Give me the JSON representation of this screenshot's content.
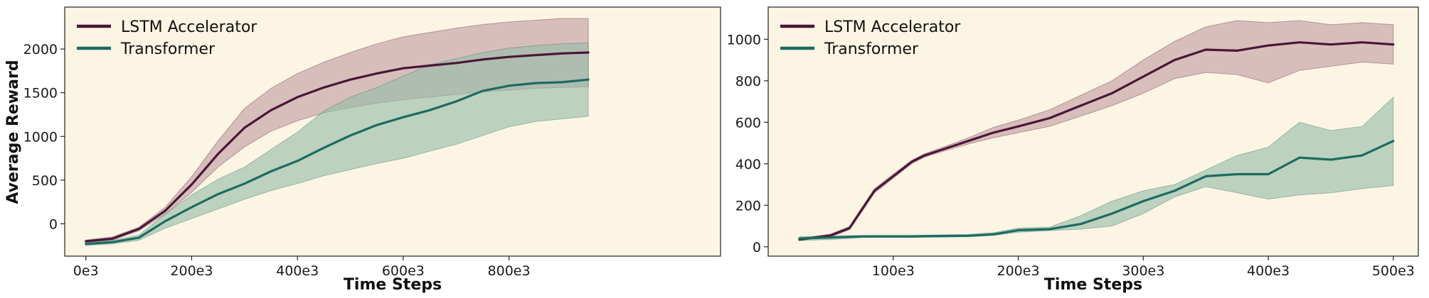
{
  "colors": {
    "background": "#fdf5e3",
    "lstm": "#4a1637",
    "lstm_band": "#b98f9a",
    "transformer": "#1c6b61",
    "transformer_band": "#95bda8"
  },
  "chart_data": [
    {
      "type": "line",
      "xlabel": "Time Steps",
      "ylabel": "Average Reward",
      "xlim": [
        -40,
        1200
      ],
      "ylim": [
        -370,
        2480
      ],
      "xticks": [
        0,
        200,
        400,
        600,
        800
      ],
      "xtick_labels": [
        "0e3",
        "200e3",
        "400e3",
        "600e3",
        "800e3"
      ],
      "yticks": [
        0,
        500,
        1000,
        1500,
        2000
      ],
      "ytick_labels": [
        "0",
        "500",
        "1000",
        "1500",
        "2000"
      ],
      "legend": {
        "location": "top-left",
        "entries": [
          "LSTM Accelerator",
          "Transformer"
        ]
      },
      "x": [
        0,
        50,
        100,
        150,
        200,
        250,
        300,
        350,
        400,
        450,
        500,
        550,
        600,
        650,
        700,
        750,
        800,
        850,
        900,
        950
      ],
      "series": [
        {
          "name": "LSTM Accelerator",
          "values": [
            -200,
            -170,
            -60,
            150,
            450,
            800,
            1100,
            1300,
            1450,
            1560,
            1650,
            1720,
            1780,
            1810,
            1840,
            1880,
            1910,
            1930,
            1950,
            1960
          ],
          "lower": [
            -215,
            -190,
            -80,
            110,
            360,
            650,
            880,
            1060,
            1180,
            1270,
            1330,
            1380,
            1420,
            1450,
            1480,
            1510,
            1530,
            1550,
            1560,
            1570
          ],
          "upper": [
            -185,
            -150,
            -40,
            190,
            540,
            950,
            1320,
            1550,
            1720,
            1850,
            1960,
            2060,
            2140,
            2190,
            2240,
            2280,
            2310,
            2330,
            2350,
            2350
          ]
        },
        {
          "name": "Transformer",
          "values": [
            -230,
            -210,
            -160,
            30,
            190,
            340,
            460,
            600,
            720,
            870,
            1010,
            1130,
            1220,
            1300,
            1400,
            1520,
            1580,
            1610,
            1620,
            1650
          ],
          "lower": [
            -250,
            -230,
            -190,
            -50,
            60,
            170,
            280,
            380,
            460,
            550,
            620,
            690,
            750,
            830,
            910,
            1010,
            1110,
            1170,
            1200,
            1230
          ],
          "upper": [
            -210,
            -190,
            -130,
            110,
            330,
            510,
            650,
            850,
            1050,
            1290,
            1450,
            1560,
            1690,
            1820,
            1890,
            1960,
            2010,
            2040,
            2060,
            2070
          ]
        }
      ]
    },
    {
      "type": "line",
      "xlabel": "Time Steps",
      "ylabel": "",
      "xlim": [
        0,
        520
      ],
      "ylim": [
        -45,
        1155
      ],
      "xticks": [
        100,
        200,
        300,
        400,
        500
      ],
      "xtick_labels": [
        "100e3",
        "200e3",
        "300e3",
        "400e3",
        "500e3"
      ],
      "yticks": [
        0,
        200,
        400,
        600,
        800,
        1000
      ],
      "ytick_labels": [
        "0",
        "200",
        "400",
        "600",
        "800",
        "1000"
      ],
      "legend": {
        "location": "top-left",
        "entries": [
          "LSTM Accelerator",
          "Transformer"
        ]
      },
      "x": [
        25,
        50,
        65,
        75,
        85,
        100,
        115,
        125,
        140,
        160,
        180,
        200,
        225,
        250,
        275,
        300,
        325,
        350,
        375,
        400,
        425,
        450,
        475,
        500
      ],
      "series": [
        {
          "name": "LSTM Accelerator",
          "values": [
            35,
            55,
            90,
            180,
            270,
            340,
            410,
            440,
            470,
            510,
            550,
            580,
            620,
            680,
            740,
            820,
            900,
            950,
            945,
            970,
            985,
            975,
            985,
            975
          ],
          "lower": [
            30,
            48,
            82,
            170,
            260,
            330,
            402,
            432,
            460,
            495,
            525,
            550,
            580,
            630,
            680,
            740,
            810,
            840,
            830,
            790,
            850,
            870,
            890,
            880
          ],
          "upper": [
            40,
            62,
            98,
            190,
            280,
            350,
            418,
            448,
            480,
            525,
            575,
            610,
            660,
            730,
            800,
            900,
            990,
            1060,
            1090,
            1080,
            1090,
            1070,
            1080,
            1070
          ]
        },
        {
          "name": "Transformer",
          "values": [
            40,
            45,
            48,
            50,
            50,
            50,
            50,
            51,
            52,
            53,
            60,
            80,
            85,
            110,
            160,
            220,
            270,
            340,
            350,
            350,
            430,
            420,
            440,
            510
          ],
          "lower": [
            30,
            35,
            40,
            44,
            45,
            45,
            45,
            46,
            47,
            48,
            55,
            70,
            78,
            85,
            100,
            160,
            240,
            290,
            260,
            230,
            250,
            260,
            280,
            295
          ],
          "upper": [
            48,
            52,
            54,
            55,
            55,
            55,
            55,
            56,
            58,
            60,
            68,
            90,
            95,
            150,
            220,
            270,
            300,
            370,
            440,
            480,
            600,
            560,
            580,
            720
          ]
        }
      ]
    }
  ]
}
